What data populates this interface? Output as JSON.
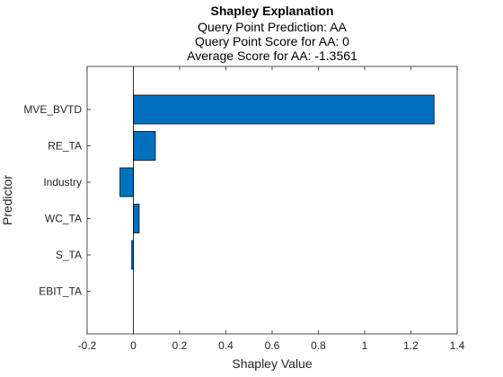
{
  "chart_data": {
    "type": "bar",
    "orientation": "horizontal",
    "title": "Shapley Explanation",
    "subtitle_lines": [
      "Query Point Prediction: AA",
      "Query Point Score for AA: 0",
      "Average Score for AA: -1.3561"
    ],
    "xlabel": "Shapley Value",
    "ylabel": "Predictor",
    "categories": [
      "MVE_BVTD",
      "RE_TA",
      "Industry",
      "WC_TA",
      "S_TA",
      "EBIT_TA"
    ],
    "values": [
      1.3,
      0.095,
      -0.058,
      0.025,
      -0.007,
      0.0
    ],
    "xlim": [
      -0.2,
      1.4
    ],
    "xticks": [
      -0.2,
      0,
      0.2,
      0.4,
      0.6,
      0.8,
      1,
      1.2,
      1.4
    ],
    "xtick_labels": [
      "-0.2",
      "0",
      "0.2",
      "0.4",
      "0.6",
      "0.8",
      "1",
      "1.2",
      "1.4"
    ],
    "grid": false,
    "legend": false,
    "bar_color": "#0072BD",
    "bar_edge_color": "#000000",
    "axis_color": "#262626"
  }
}
